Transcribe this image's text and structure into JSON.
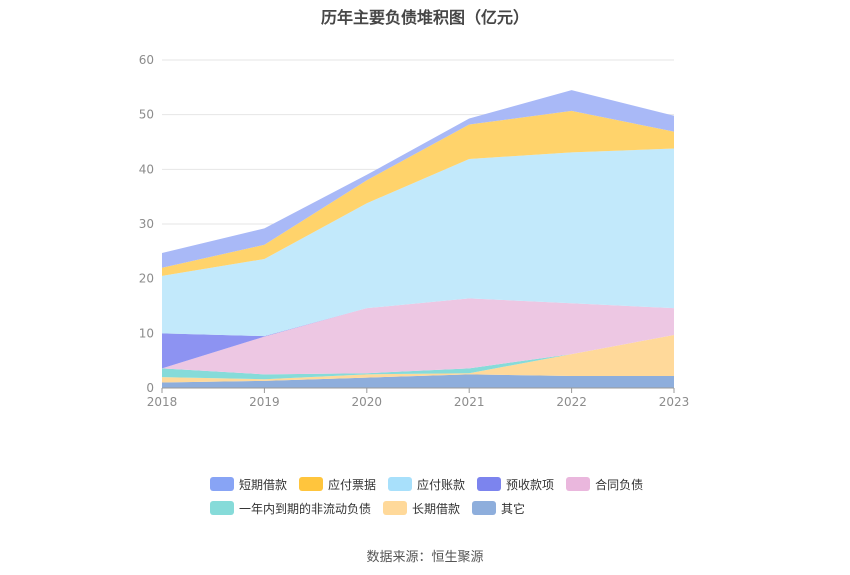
{
  "chart_data": {
    "type": "area",
    "title": "历年主要负债堆积图（亿元）",
    "source": "数据来源：恒生聚源",
    "categories": [
      "2018",
      "2019",
      "2020",
      "2021",
      "2022",
      "2023"
    ],
    "yticks": [
      "0",
      "10",
      "20",
      "30",
      "40",
      "50",
      "60"
    ],
    "ylim": [
      0,
      60
    ],
    "stacked": true,
    "grid": true,
    "legend_position": "bottom",
    "series": [
      {
        "name": "其它",
        "color": "#8eaedc",
        "values": [
          1.0,
          1.3,
          1.9,
          2.5,
          2.2,
          2.2
        ]
      },
      {
        "name": "长期借款",
        "color": "#ffd99a",
        "values": [
          1.0,
          0.3,
          0.6,
          0.2,
          4.0,
          7.5
        ]
      },
      {
        "name": "一年内到期的非流动负债",
        "color": "#86dbd9",
        "values": [
          1.6,
          0.9,
          0.2,
          0.9,
          0.0,
          0.0
        ]
      },
      {
        "name": "合同负债",
        "color": "#edc7e3",
        "values": [
          0.0,
          6.9,
          11.9,
          12.8,
          9.3,
          4.9
        ]
      },
      {
        "name": "预收款项",
        "color": "#8d93f2",
        "values": [
          6.4,
          0.1,
          0.0,
          0.0,
          0.0,
          0.0
        ]
      },
      {
        "name": "应付账款",
        "color": "#c2e9fb",
        "values": [
          10.5,
          14.1,
          19.2,
          25.5,
          27.6,
          29.2
        ]
      },
      {
        "name": "应付票据",
        "color": "#ffd36b",
        "values": [
          1.5,
          2.6,
          4.2,
          6.3,
          7.6,
          3.1
        ]
      },
      {
        "name": "短期借款",
        "color": "#a9b9f7",
        "values": [
          2.7,
          3.0,
          1.0,
          1.1,
          3.8,
          2.9
        ]
      }
    ],
    "legend_rows": [
      [
        {
          "name": "短期借款",
          "color": "#88a4f5"
        },
        {
          "name": "应付票据",
          "color": "#ffc53d"
        },
        {
          "name": "应付账款",
          "color": "#a8e0fb"
        },
        {
          "name": "预收款项",
          "color": "#7c84ee"
        },
        {
          "name": "合同负债",
          "color": "#eab7dd"
        }
      ],
      [
        {
          "name": "一年内到期的非流动负债",
          "color": "#86dbd9"
        },
        {
          "name": "长期借款",
          "color": "#ffd99a"
        },
        {
          "name": "其它",
          "color": "#8eaedc"
        }
      ]
    ]
  }
}
